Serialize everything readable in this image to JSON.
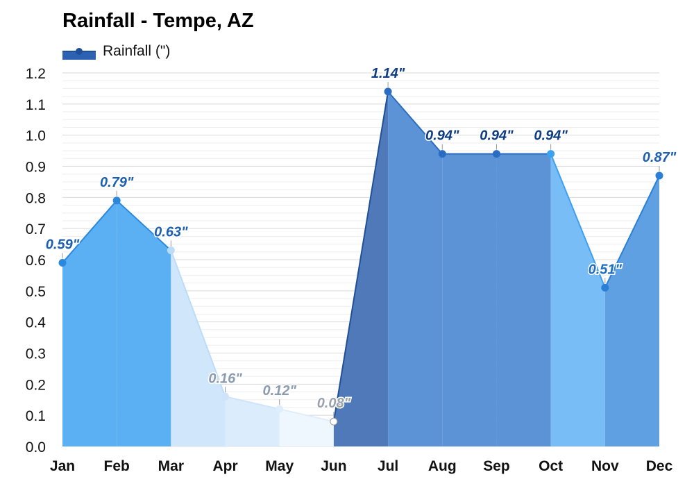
{
  "chart_data": {
    "type": "area",
    "title": "Rainfall - Tempe, AZ",
    "categories": [
      "Jan",
      "Feb",
      "Mar",
      "Apr",
      "May",
      "Jun",
      "Jul",
      "Aug",
      "Sep",
      "Oct",
      "Nov",
      "Dec"
    ],
    "series": [
      {
        "name": "Rainfall (\")",
        "values": [
          0.59,
          0.79,
          0.63,
          0.16,
          0.12,
          0.08,
          1.14,
          0.94,
          0.94,
          0.94,
          0.51,
          0.87
        ],
        "labels": [
          "0.59\"",
          "0.79\"",
          "0.63\"",
          "0.16\"",
          "0.12\"",
          "0.08\"",
          "1.14\"",
          "0.94\"",
          "0.94\"",
          "0.94\"",
          "0.51\"",
          "0.87\""
        ]
      }
    ],
    "ylim": [
      0,
      1.2
    ],
    "yticks": [
      "0.0",
      "0.1",
      "0.2",
      "0.3",
      "0.4",
      "0.5",
      "0.6",
      "0.7",
      "0.8",
      "0.9",
      "1.0",
      "1.1",
      "1.2"
    ],
    "grid": true,
    "legend_position": "top-left",
    "segment_colors": [
      "#5ab0f2",
      "#5ab0f2",
      "#cfe6fb",
      "#dbecfc",
      "#eef6fe",
      "#4f79b8",
      "#5b93d6",
      "#5b93d6",
      "#5b93d6",
      "#79bdf6",
      "#5ea0e2"
    ],
    "line_colors": [
      "#2a88dd",
      "#2a88dd",
      "#bcdcf8",
      "#cfe4fa",
      "#dfeefc",
      "#1f4f99",
      "#2a6cc2",
      "#2a6cc2",
      "#2a6cc2",
      "#3ea0f0",
      "#2a7fd6"
    ],
    "label_colors": [
      "#1d5fb0",
      "#1d5fb0",
      "#1d5fb0",
      "#8b9bb0",
      "#8b9bb0",
      "#9aa3ad",
      "#0f3d86",
      "#0f3d86",
      "#0f3d86",
      "#0f3d86",
      "#1d6fc2",
      "#1d5fb0"
    ],
    "legend_color": "#2d62b3"
  }
}
